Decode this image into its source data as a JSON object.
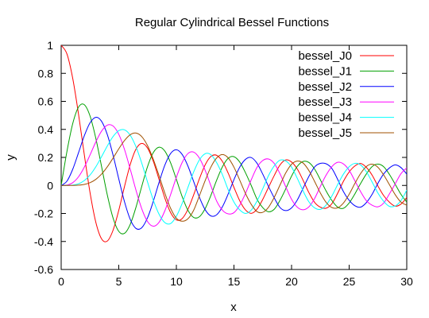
{
  "chart_data": {
    "type": "line",
    "title": "Regular Cylindrical Bessel Functions",
    "xlabel": "x",
    "ylabel": "y",
    "xlim": [
      0,
      30
    ],
    "ylim": [
      -0.6,
      1
    ],
    "x_ticks": [
      0,
      5,
      10,
      15,
      20,
      25,
      30
    ],
    "y_ticks": [
      -0.6,
      -0.4,
      -0.2,
      0,
      0.2,
      0.4,
      0.6,
      0.8,
      1
    ],
    "x_tick_labels": [
      "0",
      "5",
      "10",
      "15",
      "20",
      "25",
      "30"
    ],
    "y_tick_labels": [
      "-0.6",
      "-0.4",
      "-0.2",
      "0",
      "0.2",
      "0.4",
      "0.6",
      "0.8",
      "1"
    ],
    "x": [
      0,
      0.5,
      1,
      1.5,
      2,
      2.5,
      3,
      3.5,
      4,
      4.5,
      5,
      5.5,
      6,
      6.5,
      7,
      7.5,
      8,
      8.5,
      9,
      9.5,
      10,
      10.5,
      11,
      11.5,
      12,
      12.5,
      13,
      13.5,
      14,
      14.5,
      15,
      15.5,
      16,
      16.5,
      17,
      17.5,
      18,
      18.5,
      19,
      19.5,
      20,
      20.5,
      21,
      21.5,
      22,
      22.5,
      23,
      23.5,
      24,
      24.5,
      25,
      25.5,
      26,
      26.5,
      27,
      27.5,
      28,
      28.5,
      29,
      29.5,
      30
    ],
    "grid": false,
    "legend_position": "top-right",
    "series": [
      {
        "name": "bessel_J0",
        "color": "#ff0000",
        "values": [
          1.0,
          0.9385,
          0.7652,
          0.5118,
          0.2239,
          -0.0484,
          -0.2601,
          -0.3801,
          -0.3971,
          -0.3205,
          -0.1776,
          -0.0068,
          0.1506,
          0.2601,
          0.3001,
          0.2663,
          0.1717,
          0.0419,
          -0.0903,
          -0.1939,
          -0.2459,
          -0.2366,
          -0.1712,
          -0.0677,
          0.0477,
          0.1469,
          0.2069,
          0.215,
          0.1711,
          0.0875,
          -0.0142,
          -0.1092,
          -0.1749,
          -0.199,
          -0.1699,
          -0.0993,
          -0.0134,
          0.0712,
          0.1466,
          0.1821,
          0.167,
          0.1169,
          0.0366,
          -0.0506,
          -0.1207,
          -0.1552,
          -0.1624,
          -0.1299,
          -0.0562,
          0.0293,
          0.0963,
          0.1391,
          0.1565,
          0.1282,
          0.0724,
          -0.0048,
          -0.0731,
          -0.1199,
          -0.1478,
          -0.1331,
          -0.0864
        ]
      },
      {
        "name": "bessel_J1",
        "color": "#00a000",
        "values": [
          0.0,
          0.2423,
          0.4401,
          0.5579,
          0.5767,
          0.4971,
          0.3391,
          0.1374,
          -0.066,
          -0.2311,
          -0.3276,
          -0.3414,
          -0.2767,
          -0.1538,
          -0.0047,
          0.1352,
          0.2346,
          0.2731,
          0.2453,
          0.1613,
          0.0435,
          -0.0789,
          -0.1768,
          -0.2284,
          -0.2234,
          -0.1655,
          -0.0703,
          0.038,
          0.1334,
          0.1934,
          0.2051,
          0.1672,
          0.0904,
          -0.0007,
          -0.0977,
          -0.1585,
          -0.188,
          -0.1697,
          -0.1057,
          -0.0233,
          0.0668,
          0.1367,
          0.1711,
          0.1641,
          0.1172,
          0.0405,
          -0.0395,
          -0.1072,
          -0.1543,
          -0.1633,
          -0.1254,
          -0.06,
          0.0147,
          0.0825,
          0.1349,
          0.1522,
          0.1334,
          0.0781,
          0.0079,
          -0.064,
          -0.1188
        ]
      },
      {
        "name": "bessel_J2",
        "color": "#0000ff",
        "values": [
          0.0,
          0.0306,
          0.1149,
          0.2321,
          0.3528,
          0.4461,
          0.4861,
          0.4586,
          0.3641,
          0.2178,
          0.0466,
          -0.1173,
          -0.2429,
          -0.3074,
          -0.3014,
          -0.2303,
          -0.113,
          0.0223,
          0.1448,
          0.2279,
          0.2546,
          0.2216,
          0.139,
          0.028,
          -0.0849,
          -0.1734,
          -0.2177,
          -0.2094,
          -0.152,
          -0.0608,
          0.0416,
          0.1308,
          0.1862,
          0.199,
          0.1584,
          0.0804,
          -0.0075,
          -0.0895,
          -0.1578,
          -0.1797,
          -0.1603,
          -0.1035,
          -0.0202,
          0.064,
          0.1317,
          0.1572,
          0.1547,
          0.1209,
          0.0434,
          -0.0433,
          -0.1063,
          -0.1451,
          -0.1548,
          -0.122,
          -0.0625,
          0.0159,
          0.0826,
          0.1253,
          0.1466,
          0.1274,
          0.0807
        ]
      },
      {
        "name": "bessel_J3",
        "color": "#ff00ff",
        "values": [
          0.0,
          0.0026,
          0.0196,
          0.061,
          0.1289,
          0.2166,
          0.3091,
          0.3868,
          0.4302,
          0.4247,
          0.3648,
          0.2561,
          0.1148,
          -0.0353,
          -0.1676,
          -0.2581,
          -0.2911,
          -0.2626,
          -0.1809,
          -0.0653,
          0.0584,
          0.1633,
          0.2273,
          0.2381,
          0.1951,
          0.1076,
          -0.0034,
          -0.1116,
          -0.1768,
          -0.203,
          -0.194,
          -0.1411,
          -0.057,
          0.0404,
          0.1292,
          0.1781,
          0.1884,
          0.1561,
          0.0827,
          -0.0102,
          -0.0989,
          -0.1555,
          -0.1738,
          -0.1533,
          -0.0933,
          -0.007,
          0.0735,
          0.1343,
          0.165,
          0.1535,
          0.1083,
          0.0326,
          -0.0451,
          -0.1098,
          -0.1415,
          -0.1525,
          -0.1251,
          -0.0597,
          0.0119,
          0.0839,
          0.1248
        ]
      },
      {
        "name": "bessel_J4",
        "color": "#00ffff",
        "values": [
          0.0,
          0.0002,
          0.0025,
          0.0118,
          0.034,
          0.0738,
          0.132,
          0.2044,
          0.2811,
          0.3484,
          0.3912,
          0.3967,
          0.3576,
          0.2748,
          0.1578,
          0.0238,
          -0.1054,
          -0.2059,
          -0.2655,
          -0.2718,
          -0.2196,
          -0.1284,
          -0.015,
          0.096,
          0.1825,
          0.2263,
          0.2193,
          0.1626,
          0.0762,
          -0.0305,
          -0.119,
          -0.1747,
          -0.1998,
          -0.1763,
          -0.1116,
          -0.0239,
          0.0703,
          0.1399,
          0.1804,
          0.1746,
          0.1307,
          0.05,
          -0.039,
          -0.1163,
          -0.1601,
          -0.1708,
          -0.14,
          -0.0752,
          0.0059,
          0.0805,
          0.1335,
          0.1578,
          0.1457,
          0.0973,
          0.0234,
          -0.0548,
          -0.1139,
          -0.1495,
          -0.1465,
          -0.1078,
          -0.0335
        ]
      },
      {
        "name": "bessel_J5",
        "color": "#a05000",
        "values": [
          0.0,
          0.0,
          0.0002,
          0.0018,
          0.007,
          0.0195,
          0.043,
          0.0804,
          0.1321,
          0.1947,
          0.2611,
          0.3209,
          0.3621,
          0.3736,
          0.3479,
          0.2835,
          0.1858,
          0.0684,
          -0.055,
          -0.1632,
          -0.2341,
          -0.2554,
          -0.2383,
          -0.1772,
          -0.0735,
          0.0347,
          0.1316,
          0.1963,
          0.2204,
          0.1964,
          0.1301,
          0.038,
          -0.0575,
          -0.1352,
          -0.187,
          -0.1918,
          -0.1554,
          -0.0846,
          0.0036,
          0.0899,
          0.1512,
          0.1736,
          0.16,
          0.1067,
          0.0285,
          -0.0538,
          -0.1208,
          -0.1579,
          -0.1595,
          -0.1257,
          -0.063,
          0.0146,
          0.0857,
          0.1356,
          0.1515,
          0.1293,
          0.0744,
          0.0048,
          -0.0663,
          -0.1192,
          -0.1406
        ]
      }
    ]
  }
}
